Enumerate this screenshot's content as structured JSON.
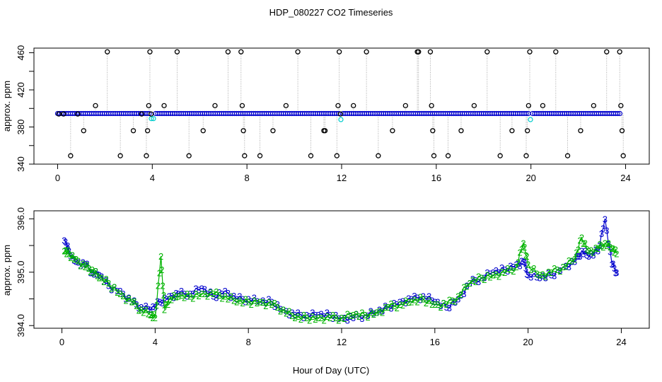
{
  "title": "HDP_080227  CO2 Timeseries",
  "xlabel": "Hour of Day (UTC)",
  "colors": {
    "black": "#000000",
    "blue": "#0000cc",
    "cyan": "#00cccc",
    "green": "#00b300",
    "grey": "#999999"
  },
  "chart_data": [
    {
      "type": "scatter",
      "title": "",
      "ylabel": "approx. ppm",
      "xlim": [
        -1,
        25
      ],
      "ylim": [
        340,
        465
      ],
      "x_ticks": [
        0,
        4,
        8,
        12,
        16,
        20,
        24
      ],
      "y_ticks": [
        340,
        360,
        380,
        400,
        420,
        440,
        460
      ],
      "y_tick_labels": [
        "340",
        "",
        "380",
        "",
        "420",
        "",
        "460"
      ],
      "series": [
        {
          "marker": "open-circle-black",
          "x": [
            0.05,
            0.25,
            0.55,
            0.85,
            1.1,
            1.6,
            2.1,
            2.65,
            3.2,
            3.55,
            3.75,
            3.8,
            3.85,
            3.9,
            3.95,
            4.5,
            5.05,
            5.55,
            6.15,
            6.65,
            7.2,
            7.75,
            7.8,
            7.85,
            7.9,
            8.55,
            9.1,
            9.65,
            10.15,
            10.7,
            11.25,
            11.3,
            11.8,
            11.85,
            11.9,
            11.95,
            12.5,
            13.05,
            13.55,
            14.15,
            14.7,
            15.2,
            15.25,
            15.75,
            15.8,
            15.85,
            15.9,
            16.5,
            17.05,
            17.6,
            18.15,
            18.7,
            19.2,
            19.8,
            19.85,
            19.9,
            19.95,
            20.5,
            21.05,
            21.55,
            22.1,
            22.65,
            23.2,
            23.75,
            23.8,
            23.85,
            23.9
          ],
          "y": [
            394,
            394,
            349,
            394,
            376,
            403,
            461,
            349,
            376,
            394,
            349,
            376,
            403,
            461,
            394,
            403,
            461,
            349,
            376,
            403,
            461,
            461,
            403,
            376,
            349,
            349,
            376,
            403,
            461,
            349,
            376,
            376,
            349,
            403,
            461,
            394,
            403,
            461,
            349,
            376,
            403,
            461,
            461,
            461,
            403,
            376,
            349,
            349,
            376,
            403,
            461,
            349,
            376,
            349,
            376,
            403,
            461,
            403,
            461,
            349,
            376,
            403,
            461,
            461,
            403,
            376,
            349
          ]
        },
        {
          "marker": "blue-band",
          "x_start": 0,
          "x_end": 23.8,
          "y": 394.5
        }
      ]
    },
    {
      "type": "line",
      "title": "",
      "ylabel": "approx. ppm",
      "xlim": [
        -1.2,
        25.2
      ],
      "ylim": [
        393.95,
        396.15
      ],
      "x_ticks": [
        0,
        4,
        8,
        12,
        16,
        20,
        24
      ],
      "y_ticks": [
        394.0,
        394.5,
        395.0,
        395.5,
        396.0
      ],
      "y_tick_labels": [
        "394.0",
        "",
        "395.0",
        "",
        "396.0"
      ],
      "series": [
        {
          "name": "3",
          "color": "#0000cc",
          "x": [
            0.1,
            0.3,
            0.6,
            1.0,
            1.3,
            1.6,
            2.0,
            2.5,
            3.0,
            3.4,
            3.8,
            4.2,
            4.6,
            5.0,
            5.5,
            6.0,
            6.5,
            7.0,
            7.5,
            8.0,
            8.5,
            9.0,
            9.5,
            10.0,
            10.5,
            11.0,
            11.5,
            12.0,
            12.5,
            13.0,
            13.5,
            14.0,
            14.5,
            15.0,
            15.5,
            16.0,
            16.5,
            17.0,
            17.5,
            18.0,
            18.5,
            19.0,
            19.5,
            19.8,
            20.0,
            20.5,
            21.0,
            21.5,
            22.0,
            22.3,
            22.6,
            23.0,
            23.3,
            23.6,
            23.8
          ],
          "y": [
            395.6,
            395.4,
            395.2,
            395.15,
            395.0,
            394.95,
            394.75,
            394.65,
            394.45,
            394.35,
            394.3,
            394.45,
            394.55,
            394.6,
            394.6,
            394.7,
            394.55,
            394.65,
            394.5,
            394.5,
            394.45,
            394.45,
            394.3,
            394.2,
            394.2,
            394.2,
            394.2,
            394.15,
            394.15,
            394.2,
            394.25,
            394.35,
            394.45,
            394.5,
            394.55,
            394.45,
            394.35,
            394.5,
            394.8,
            394.9,
            395.0,
            395.05,
            395.15,
            395.2,
            394.95,
            394.9,
            394.95,
            395.1,
            395.2,
            395.4,
            395.3,
            395.4,
            396.0,
            395.15,
            395.0
          ]
        },
        {
          "name": "2",
          "color": "#00b300",
          "x": [
            0.1,
            0.3,
            0.6,
            1.0,
            1.3,
            1.6,
            2.0,
            2.5,
            3.0,
            3.4,
            3.8,
            4.0,
            4.25,
            4.4,
            4.6,
            5.0,
            5.5,
            6.0,
            6.5,
            7.0,
            7.5,
            8.0,
            8.5,
            9.0,
            9.5,
            10.0,
            10.5,
            11.0,
            11.5,
            12.0,
            12.5,
            13.0,
            13.5,
            14.0,
            14.5,
            15.0,
            15.5,
            16.0,
            16.5,
            17.0,
            17.5,
            18.0,
            18.5,
            19.0,
            19.5,
            19.8,
            20.0,
            20.5,
            21.0,
            21.5,
            22.0,
            22.3,
            22.6,
            23.0,
            23.3,
            23.6,
            23.8
          ],
          "y": [
            395.4,
            395.35,
            395.25,
            395.1,
            395.05,
            394.9,
            394.8,
            394.6,
            394.45,
            394.3,
            394.2,
            394.15,
            395.3,
            394.3,
            394.5,
            394.55,
            394.55,
            394.6,
            394.6,
            394.55,
            394.45,
            394.45,
            394.45,
            394.4,
            394.3,
            394.15,
            394.15,
            394.15,
            394.15,
            394.15,
            394.2,
            394.2,
            394.25,
            394.35,
            394.4,
            394.45,
            394.5,
            394.4,
            394.4,
            394.55,
            394.8,
            394.9,
            394.95,
            395.0,
            395.1,
            395.55,
            395.15,
            394.95,
            395.0,
            395.1,
            395.25,
            395.65,
            395.4,
            395.45,
            395.55,
            395.45,
            395.35
          ]
        }
      ]
    }
  ]
}
